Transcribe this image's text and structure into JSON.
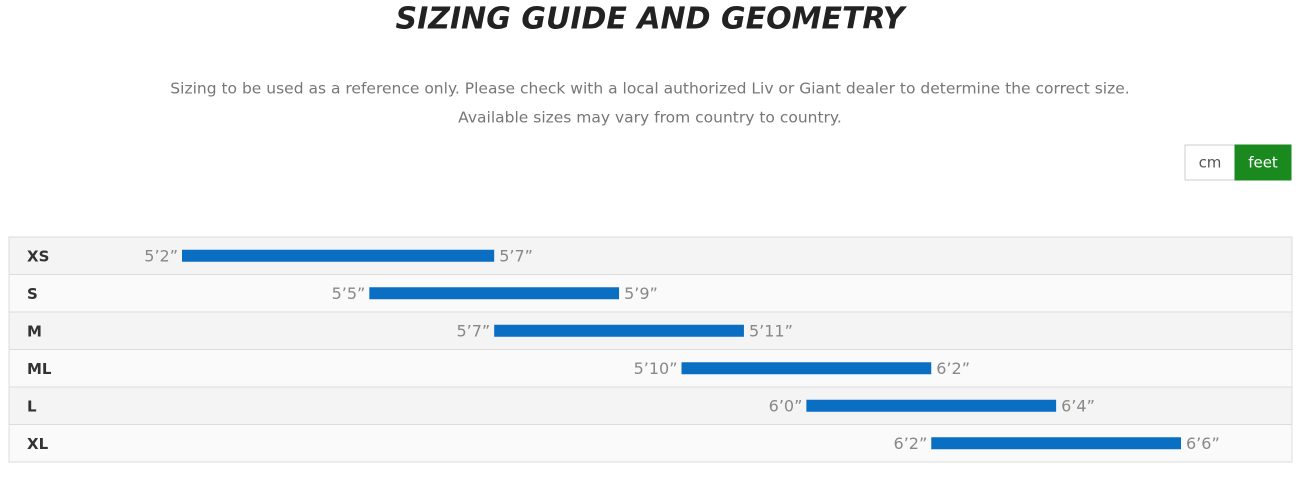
{
  "header": {
    "title": "SIZING GUIDE AND GEOMETRY",
    "subtitle": [
      "Sizing to be used as a reference only. Please check with a local authorized Liv or Giant dealer to determine the correct size.",
      "Available sizes may vary from country to country."
    ]
  },
  "unit_toggle": {
    "options": [
      "cm",
      "feet"
    ],
    "selected": 1
  },
  "chart_data": {
    "type": "range-bar",
    "categories": [
      "XS",
      "S",
      "M",
      "ML",
      "L",
      "XL"
    ],
    "low_values": [
      62,
      65,
      67,
      70,
      72,
      74
    ],
    "low_value_labels": [
      "5’2”",
      "5’5”",
      "5’7”",
      "5’10”",
      "6’0”",
      "6’2”"
    ],
    "high_values": [
      67,
      69,
      71,
      74,
      76,
      78
    ],
    "high_value_labels": [
      "5’7”",
      "5’9”",
      "5’11”",
      "6’2”",
      "6’4”",
      "6’6”"
    ],
    "color": "#0a6fc2"
  }
}
